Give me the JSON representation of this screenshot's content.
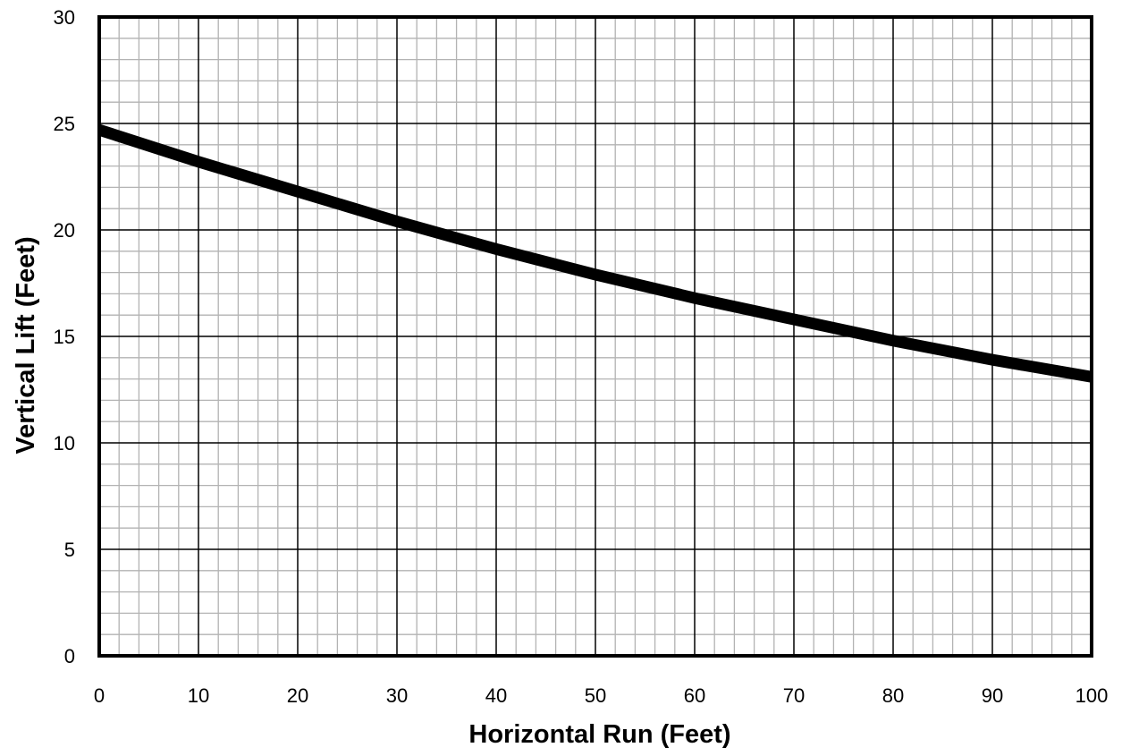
{
  "chart_data": {
    "type": "line",
    "title": "",
    "xlabel": "Horizontal Run (Feet)",
    "ylabel": "Vertical Lift (Feet)",
    "xlim": [
      0,
      100
    ],
    "ylim": [
      0,
      30
    ],
    "x_ticks": [
      "0",
      "10",
      "20",
      "30",
      "40",
      "50",
      "60",
      "70",
      "80",
      "90",
      "100"
    ],
    "y_ticks": [
      "0",
      "5",
      "10",
      "15",
      "20",
      "25",
      "30"
    ],
    "major_grid": true,
    "minor_grid": true,
    "legend": "none",
    "line_color": "#000000",
    "series": [
      {
        "x": [
          0,
          10,
          20,
          30,
          40,
          50,
          60,
          70,
          80,
          90,
          100
        ],
        "values": [
          24.7,
          23.2,
          21.8,
          20.4,
          19.1,
          17.9,
          16.8,
          15.8,
          14.8,
          13.9,
          13.1
        ]
      }
    ]
  }
}
